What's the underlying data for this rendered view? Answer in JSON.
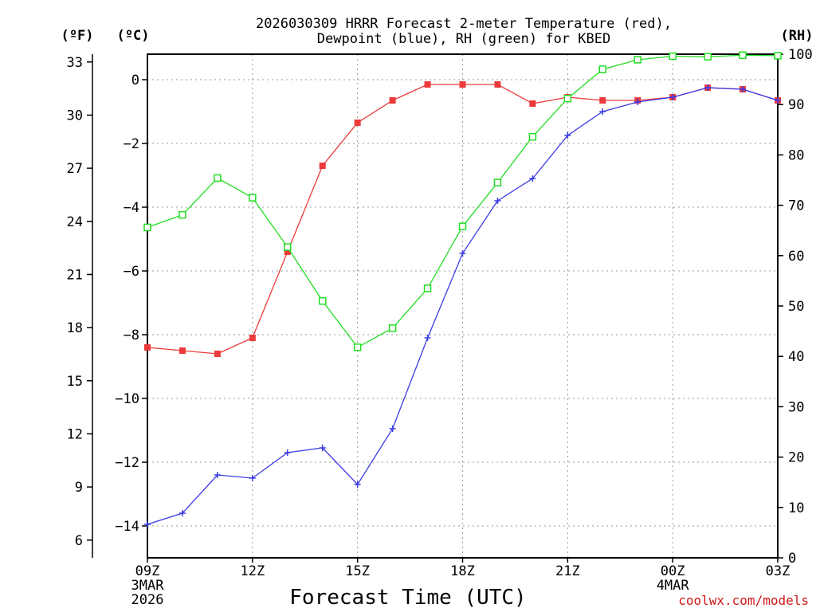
{
  "chart_data": {
    "type": "line",
    "title_line1": "2026030309 HRRR Forecast 2-meter Temperature (red),",
    "title_line2": "Dewpoint (blue), RH (green) for KBED",
    "xlabel": "Forecast Time (UTC)",
    "credit": "coolwx.com/models",
    "units": {
      "fahrenheit": "(ºF)",
      "celsius": "(ºC)",
      "rh": "(RH)"
    },
    "x_hours": [
      0,
      1,
      2,
      3,
      4,
      5,
      6,
      7,
      8,
      9,
      10,
      11,
      12,
      13,
      14,
      15,
      16,
      17,
      18
    ],
    "x_ticks": [
      {
        "hour": 0,
        "label": "09Z",
        "date": "3MAR",
        "year": "2026"
      },
      {
        "hour": 3,
        "label": "12Z"
      },
      {
        "hour": 6,
        "label": "15Z"
      },
      {
        "hour": 9,
        "label": "18Z"
      },
      {
        "hour": 12,
        "label": "21Z"
      },
      {
        "hour": 15,
        "label": "00Z",
        "date": "4MAR"
      },
      {
        "hour": 18,
        "label": "03Z"
      }
    ],
    "y_celsius": {
      "range": [
        -15,
        0.8
      ],
      "ticks": [
        0,
        -2,
        -4,
        -6,
        -8,
        -10,
        -12,
        -14
      ],
      "tick_labels": [
        "0",
        "−2",
        "−4",
        "−6",
        "−8",
        "−10",
        "−12",
        "−14"
      ]
    },
    "y_fahrenheit": {
      "ticks": [
        33,
        30,
        27,
        24,
        21,
        18,
        15,
        12,
        9,
        6
      ],
      "tick_labels": [
        "33",
        "30",
        "27",
        "24",
        "21",
        "18",
        "15",
        "12",
        "9",
        "6"
      ]
    },
    "y_rh": {
      "range": [
        0,
        100
      ],
      "ticks": [
        100,
        90,
        80,
        70,
        60,
        50,
        40,
        30,
        20,
        10,
        0
      ],
      "tick_labels": [
        "100",
        "90",
        "80",
        "70",
        "60",
        "50",
        "40",
        "30",
        "20",
        "10",
        "0"
      ]
    },
    "series": [
      {
        "name": "Temperature",
        "axis": "celsius",
        "color": "#ec3a3a",
        "marker": "filled-square",
        "values": [
          -8.4,
          -8.5,
          -8.6,
          -8.1,
          -5.4,
          -2.7,
          -1.35,
          -0.65,
          -0.15,
          -0.15,
          -0.15,
          -0.75,
          -0.55,
          -0.65,
          -0.65,
          -0.55,
          -0.25,
          -0.3,
          -0.65
        ]
      },
      {
        "name": "Dewpoint",
        "axis": "celsius",
        "color": "#3a3ae6",
        "marker": "plus",
        "values": [
          -13.95,
          -13.6,
          -12.4,
          -12.5,
          -11.7,
          -11.55,
          -12.7,
          -10.95,
          -8.1,
          -5.45,
          -3.8,
          -3.1,
          -1.75,
          -1.0,
          -0.7,
          -0.55,
          -0.25,
          -0.3,
          -0.65
        ]
      },
      {
        "name": "RH",
        "axis": "rh",
        "color": "#22dd22",
        "marker": "open-square",
        "values": [
          65.6,
          68.1,
          75.4,
          71.5,
          61.7,
          51.0,
          41.8,
          45.6,
          53.5,
          65.8,
          74.5,
          83.6,
          91.2,
          97.0,
          98.9,
          99.6,
          99.5,
          99.8,
          99.7
        ]
      }
    ]
  }
}
